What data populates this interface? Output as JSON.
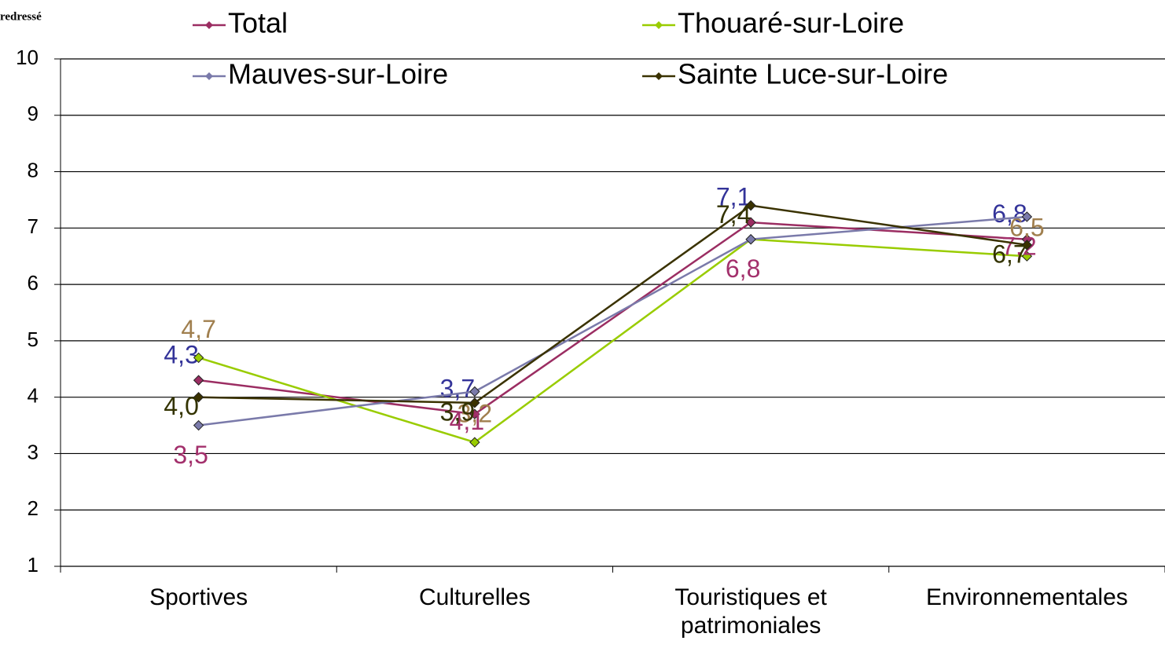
{
  "chart_data": {
    "type": "line",
    "ylabel": "redressé",
    "categories": [
      "Sportives",
      "Culturelles",
      "Touristiques et patrimoniales",
      "Environnementales"
    ],
    "series": [
      {
        "name": "Total",
        "color": "#9b2d62",
        "label_color": "#333399",
        "values": [
          4.3,
          3.7,
          7.1,
          6.8
        ],
        "value_labels": [
          "4,3",
          "3,7",
          "7,1",
          "6,8"
        ]
      },
      {
        "name": "Thouaré-sur-Loire",
        "color": "#99cc00",
        "label_color": "#a07f4e",
        "values": [
          4.7,
          3.2,
          6.8,
          6.5
        ],
        "value_labels": [
          "4,7",
          "3,2",
          null,
          "6,5"
        ]
      },
      {
        "name": "Mauves-sur-Loire",
        "color": "#7a7aaa",
        "label_color": "#a3306c",
        "values": [
          3.5,
          4.1,
          6.8,
          7.2
        ],
        "value_labels": [
          "3,5",
          "4,1",
          "6,8",
          "7,2"
        ]
      },
      {
        "name": "Sainte Luce-sur-Loire",
        "color": "#3a3200",
        "label_color": "#333300",
        "values": [
          4.0,
          3.9,
          7.4,
          6.7
        ],
        "value_labels": [
          "4,0",
          "3,9",
          "7,4",
          "6,7"
        ]
      }
    ],
    "ylim": [
      1,
      10
    ],
    "yticks": [
      1,
      2,
      3,
      4,
      5,
      6,
      7,
      8,
      9,
      10
    ],
    "grid": true,
    "legend": "top"
  }
}
